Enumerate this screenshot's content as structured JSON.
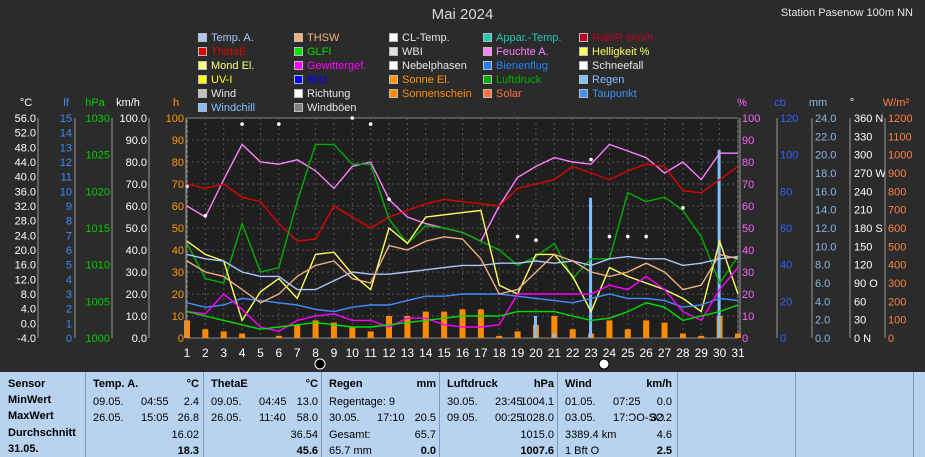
{
  "title": "Mai 2024",
  "station": "Station Pasenow 100m NN",
  "legend": [
    {
      "label": "Temp. A.",
      "color": "#a8c8ff"
    },
    {
      "label": "THSW",
      "color": "#f0b080"
    },
    {
      "label": "CL-Temp.",
      "color": "#ffffff"
    },
    {
      "label": "Appar.-Temp.",
      "color": "#20c8b8"
    },
    {
      "label": "RainR mm/h",
      "color": "#c00020"
    },
    {
      "label": "ThetaE",
      "color": "#e00000"
    },
    {
      "label": "GLFI",
      "color": "#00e000"
    },
    {
      "label": "WBI",
      "color": "#e0e0e0"
    },
    {
      "label": "Feuchte A.",
      "color": "#ff80ff"
    },
    {
      "label": "Helligkeit %",
      "color": "#ffff60"
    },
    {
      "label": "Mond El.",
      "color": "#ffff80"
    },
    {
      "label": "Gewittergef.",
      "color": "#ff00ff"
    },
    {
      "label": "Nebelphasen",
      "color": "#ffffff"
    },
    {
      "label": "Bienenflug",
      "color": "#2080ff"
    },
    {
      "label": "Schneefall",
      "color": "#ffffff"
    },
    {
      "label": "UV-I",
      "color": "#ffff00"
    },
    {
      "label": "Blitz",
      "color": "#0000ff"
    },
    {
      "label": "Sonne El.",
      "color": "#ff9900"
    },
    {
      "label": "Luftdruck",
      "color": "#00b000"
    },
    {
      "label": "Regen",
      "color": "#80c0ff"
    },
    {
      "label": "Wind",
      "color": "#c0c0c0"
    },
    {
      "label": "Richtung",
      "color": "#ffffff"
    },
    {
      "label": "Sonnenschein",
      "color": "#ff8c00"
    },
    {
      "label": "Solar",
      "color": "#ff7040"
    },
    {
      "label": "Taupunkt",
      "color": "#4090ff"
    },
    {
      "label": "Windchill",
      "color": "#80c0ff"
    },
    {
      "label": "Windböen",
      "color": "#808080"
    }
  ],
  "axes_units": {
    "temp": "°C",
    "lf": "lf",
    "hpa": "hPa",
    "kmh": "km/h",
    "h": "h",
    "pct": "%",
    "cb": "cb",
    "mm": "mm",
    "deg": "°",
    "wm2": "W/m²"
  },
  "axes_ticks": {
    "temp": [
      "56.0",
      "52.0",
      "48.0",
      "44.0",
      "40.0",
      "36.0",
      "32.0",
      "28.0",
      "24.0",
      "20.0",
      "16.0",
      "12.0",
      "8.0",
      "4.0",
      "0.0",
      "-4.0"
    ],
    "lf": [
      "15",
      "14",
      "13",
      "12",
      "11",
      "10",
      "9",
      "8",
      "7",
      "6",
      "5",
      "4",
      "3",
      "2",
      "1",
      "0"
    ],
    "hpa": [
      "1030",
      "1025",
      "1020",
      "1015",
      "1010",
      "1005",
      "1000"
    ],
    "kmh": [
      "100.0",
      "90.0",
      "80.0",
      "70.0",
      "60.0",
      "50.0",
      "40.0",
      "30.0",
      "20.0",
      "10.0",
      "0.0"
    ],
    "h": [
      "100",
      "90",
      "80",
      "70",
      "60",
      "50",
      "40",
      "30",
      "20",
      "10",
      "0"
    ],
    "pct": [
      "100",
      "90",
      "80",
      "70",
      "60",
      "50",
      "40",
      "30",
      "20",
      "10",
      "0"
    ],
    "cb": [
      "120",
      "100",
      "80",
      "60",
      "40",
      "20",
      "0"
    ],
    "mm": [
      "24.0",
      "22.0",
      "20.0",
      "18.0",
      "16.0",
      "14.0",
      "12.0",
      "10.0",
      "8.0",
      "6.0",
      "4.0",
      "2.0",
      "0.0"
    ],
    "deg": [
      "360 N",
      "330",
      "300",
      "270 W",
      "240",
      "210",
      "180 S",
      "150",
      "120",
      "90 O",
      "60",
      "30",
      "0 N"
    ],
    "wm2": [
      "1200",
      "1100",
      "1000",
      "900",
      "800",
      "700",
      "600",
      "500",
      "400",
      "300",
      "200",
      "100",
      "0"
    ]
  },
  "chart_data": {
    "type": "line",
    "title": "Mai 2024",
    "x": [
      1,
      2,
      3,
      4,
      5,
      6,
      7,
      8,
      9,
      10,
      11,
      12,
      13,
      14,
      15,
      16,
      17,
      18,
      19,
      20,
      21,
      22,
      23,
      24,
      25,
      26,
      27,
      28,
      29,
      30,
      31
    ],
    "ylim_pct": [
      0,
      100
    ],
    "series": [
      {
        "name": "Feuchte A.",
        "color": "#ff80ff",
        "values": [
          60,
          55,
          72,
          88,
          80,
          79,
          81,
          76,
          68,
          78,
          80,
          63,
          55,
          52,
          50,
          48,
          44,
          60,
          73,
          78,
          82,
          80,
          79,
          88,
          85,
          82,
          75,
          80,
          72,
          84,
          84
        ]
      },
      {
        "name": "ThetaE",
        "color": "#e00000",
        "values": [
          70,
          68,
          70,
          64,
          62,
          52,
          44,
          45,
          60,
          55,
          50,
          55,
          58,
          61,
          63,
          62,
          61,
          60,
          68,
          70,
          72,
          78,
          75,
          72,
          76,
          79,
          78,
          67,
          66,
          72,
          78
        ]
      },
      {
        "name": "Luftdruck",
        "color": "#00b000",
        "values": [
          43,
          27,
          25,
          52,
          30,
          32,
          62,
          88,
          88,
          79,
          79,
          54,
          43,
          51,
          50,
          48,
          44,
          40,
          33,
          37,
          43,
          27,
          36,
          36,
          66,
          62,
          64,
          58,
          46,
          25,
          37
        ]
      },
      {
        "name": "Helligkeit %",
        "color": "#ffff60",
        "values": [
          44,
          38,
          35,
          8,
          21,
          27,
          18,
          38,
          39,
          29,
          22,
          50,
          43,
          55,
          56,
          57,
          58,
          24,
          20,
          38,
          38,
          28,
          12,
          32,
          28,
          25,
          22,
          18,
          12,
          44,
          20
        ]
      },
      {
        "name": "Temp. A.",
        "color": "#a8c8ff",
        "values": [
          38,
          36,
          35,
          30,
          28,
          28,
          22,
          22,
          26,
          30,
          29,
          29,
          30,
          31,
          32,
          33,
          33,
          34,
          34,
          35,
          34,
          35,
          33,
          36,
          37,
          36,
          36,
          33,
          34,
          36,
          37
        ]
      },
      {
        "name": "Taupunkt",
        "color": "#4090ff",
        "values": [
          16,
          14,
          15,
          18,
          17,
          16,
          15,
          13,
          12,
          14,
          15,
          15,
          17,
          19,
          19,
          20,
          20,
          20,
          19,
          18,
          17,
          16,
          18,
          20,
          18,
          18,
          17,
          14,
          15,
          18,
          17
        ]
      },
      {
        "name": "Gewittergef.",
        "color": "#ff00ff",
        "values": [
          12,
          11,
          20,
          13,
          5,
          3,
          8,
          10,
          11,
          8,
          8,
          5,
          9,
          9,
          6,
          5,
          5,
          6,
          20,
          20,
          20,
          20,
          20,
          24,
          22,
          28,
          22,
          12,
          8,
          22,
          32
        ]
      },
      {
        "name": "THSW",
        "color": "#f0b080",
        "values": [
          35,
          30,
          28,
          22,
          16,
          20,
          28,
          33,
          35,
          27,
          25,
          42,
          40,
          44,
          46,
          45,
          36,
          20,
          22,
          30,
          38,
          35,
          30,
          28,
          30,
          34,
          30,
          22,
          24,
          38,
          36
        ]
      },
      {
        "name": "GLFI",
        "color": "#00e000",
        "values": [
          12,
          10,
          8,
          6,
          4,
          5,
          6,
          7,
          6,
          5,
          5,
          6,
          7,
          8,
          9,
          10,
          10,
          10,
          12,
          12,
          12,
          10,
          8,
          9,
          12,
          16,
          14,
          8,
          10,
          12,
          15
        ]
      }
    ],
    "bars_h": {
      "name": "Sonnenschein",
      "color": "#ff8c00",
      "values": [
        8,
        4,
        3,
        2,
        0,
        1,
        6,
        8,
        7,
        5,
        3,
        10,
        10,
        12,
        12,
        13,
        13,
        1,
        3,
        6,
        10,
        4,
        2,
        8,
        4,
        8,
        7,
        2,
        1,
        10,
        2
      ]
    },
    "rain_mm": {
      "name": "Regen",
      "color": "#80c0ff",
      "values": [
        0,
        0,
        0,
        0,
        0,
        0,
        0,
        0,
        0,
        0,
        0,
        0,
        0,
        0,
        0,
        0,
        0,
        0,
        0,
        2.4,
        0.5,
        0,
        15.3,
        0,
        0,
        0,
        0,
        0,
        0,
        20.5,
        0
      ]
    },
    "direction_deg": [
      248,
      200,
      0,
      350,
      0,
      350,
      0,
      0,
      0,
      360,
      350,
      227,
      0,
      0,
      0,
      0,
      0,
      0,
      166,
      160,
      0,
      0,
      292,
      166,
      166,
      166,
      0,
      213,
      0,
      0,
      0
    ]
  },
  "table": {
    "row_labels": [
      "Sensor",
      "MinWert",
      "MaxWert",
      "Durchschnitt",
      "31.05."
    ],
    "cols": [
      {
        "title": "Temp. A.",
        "unit": "°C",
        "min": [
          "09.05.",
          "04:55",
          "2.4"
        ],
        "max": [
          "26.05.",
          "15:05",
          "26.8"
        ],
        "avg": "16.02",
        "today": "18.3"
      },
      {
        "title": "ThetaE",
        "unit": "°C",
        "min": [
          "09.05.",
          "04:45",
          "13.0"
        ],
        "max": [
          "26.05.",
          "11:40",
          "58.0"
        ],
        "avg": "36.54",
        "today": "45.6"
      },
      {
        "title": "Regen",
        "unit": "mm",
        "min": [
          "Regentage: 9",
          "",
          ""
        ],
        "max": [
          "30.05.",
          "17:10",
          "20.5"
        ],
        "avg_label": "Gesamt:",
        "avg": "65.7",
        "today_label": "65.7 mm",
        "today": "0.0"
      },
      {
        "title": "Luftdruck",
        "unit": "hPa",
        "min": [
          "30.05.",
          "23:45",
          "1004.1"
        ],
        "max": [
          "09.05.",
          "00:25",
          "1028.0"
        ],
        "avg": "1015.0",
        "today": "1007.6"
      },
      {
        "title": "Wind",
        "unit": "km/h",
        "min": [
          "01.05.",
          "07:25",
          "0.0"
        ],
        "max": [
          "03.05.",
          "17:ƆO-SO",
          "32.2"
        ],
        "avg_label": "3389.4 km",
        "avg": "4.6",
        "today_label": "1 Bft O",
        "today": "2.5"
      }
    ]
  }
}
